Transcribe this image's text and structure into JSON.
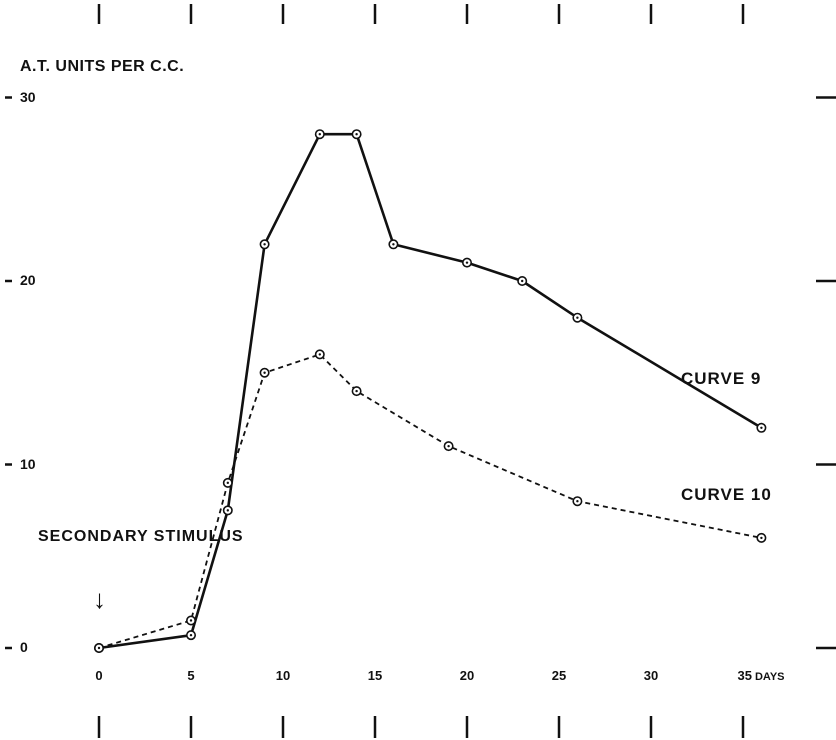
{
  "chart_data": {
    "type": "line",
    "ylabel": "A.T. UNITS PER C.C.",
    "xlabel": "DAYS",
    "ylim": [
      0,
      30
    ],
    "xlim": [
      0,
      36
    ],
    "x_ticks": [
      "0",
      "5",
      "10",
      "15",
      "20",
      "25",
      "30",
      "35"
    ],
    "y_ticks": [
      "0",
      "10",
      "20",
      "30"
    ],
    "series": [
      {
        "name": "CURVE 9",
        "line_style": "solid",
        "points": [
          [
            0,
            0
          ],
          [
            5,
            0.7
          ],
          [
            7,
            7.5
          ],
          [
            9,
            22
          ],
          [
            12,
            28
          ],
          [
            14,
            28
          ],
          [
            16,
            22
          ],
          [
            20,
            21
          ],
          [
            23,
            20
          ],
          [
            26,
            18
          ],
          [
            36,
            12
          ]
        ]
      },
      {
        "name": "CURVE 10",
        "line_style": "dashed",
        "points": [
          [
            0,
            0
          ],
          [
            5,
            1.5
          ],
          [
            7,
            9
          ],
          [
            9,
            15
          ],
          [
            12,
            16
          ],
          [
            14,
            14
          ],
          [
            19,
            11
          ],
          [
            26,
            8
          ],
          [
            36,
            6
          ]
        ]
      }
    ],
    "annotation": "SECONDARY STIMULUS",
    "grid": false,
    "legend": "inline labels beside curves"
  }
}
